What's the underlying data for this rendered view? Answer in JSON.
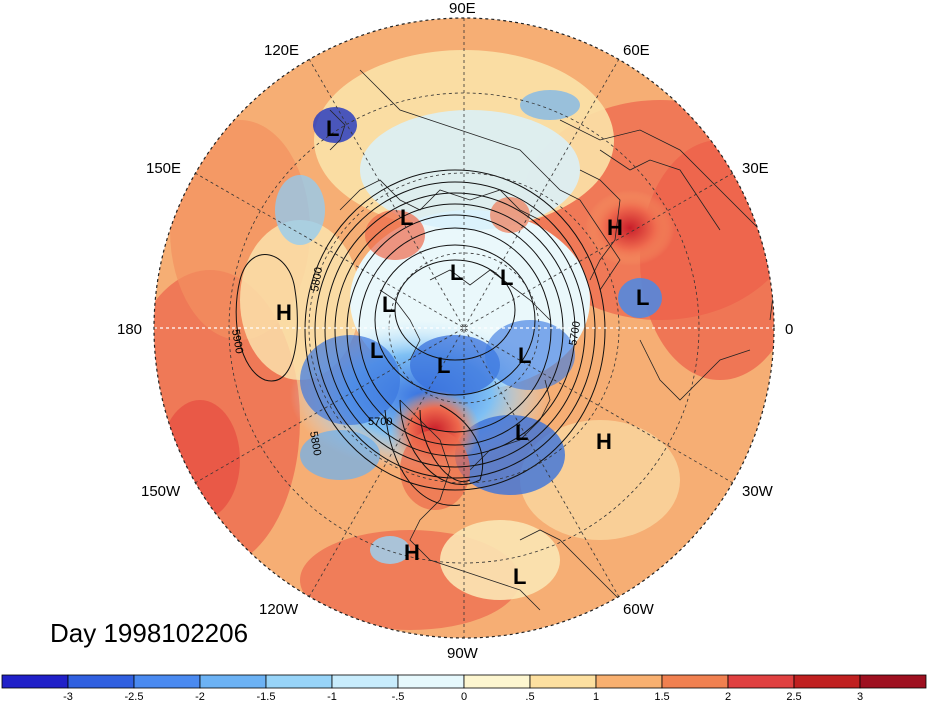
{
  "day_label": "Day 1998102206",
  "longitude_labels": {
    "90E": "90E",
    "120E": "120E",
    "60E": "60E",
    "150E": "150E",
    "30E": "30E",
    "180": "180",
    "0": "0",
    "150W": "150W",
    "30W": "30W",
    "120W": "120W",
    "60W": "60W",
    "90W": "90W"
  },
  "pressure_centers": [
    {
      "label": "L"
    },
    {
      "label": "L"
    },
    {
      "label": "L"
    },
    {
      "label": "L"
    },
    {
      "label": "L"
    },
    {
      "label": "L"
    },
    {
      "label": "L"
    },
    {
      "label": "L"
    },
    {
      "label": "L"
    },
    {
      "label": "L"
    },
    {
      "label": "L"
    },
    {
      "label": "H"
    },
    {
      "label": "H"
    },
    {
      "label": "H"
    },
    {
      "label": "H"
    }
  ],
  "contour_labels": [
    "5800",
    "5900",
    "5700",
    "5800",
    "5700"
  ],
  "colorbar": {
    "ticks": [
      "-3",
      "-2.5",
      "-2",
      "-1.5",
      "-1",
      "-.5",
      "0",
      ".5",
      "1",
      "1.5",
      "2",
      "2.5",
      "3"
    ],
    "colors": [
      "#2020c8",
      "#3060e0",
      "#4a8af0",
      "#6cb2f4",
      "#98d4f8",
      "#c8ecfc",
      "#e6f8fc",
      "#fdf6d0",
      "#fde0a0",
      "#f8b070",
      "#f08050",
      "#e04040",
      "#c02020",
      "#9e1020"
    ]
  },
  "field_colors": {
    "ocean_warm": "#f6a86a",
    "warm_strong": "#ea5a46",
    "cold_strong": "#4a8ae6",
    "neutral": "#fbf1cf"
  }
}
